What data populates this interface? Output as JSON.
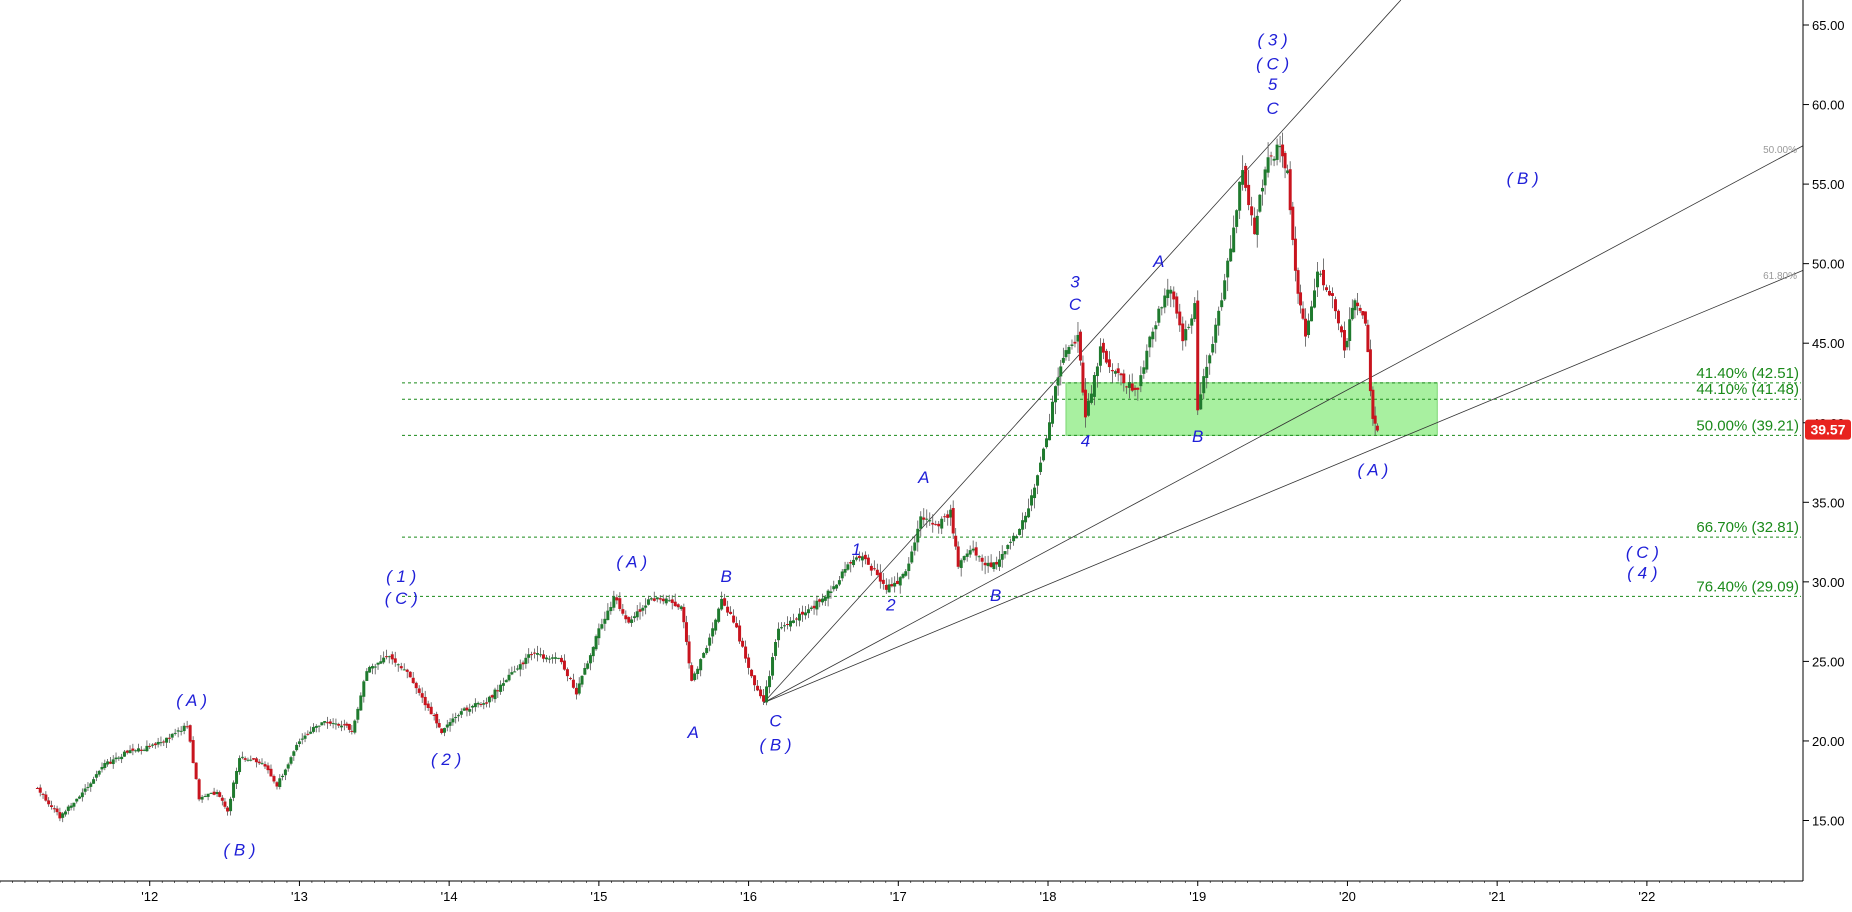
{
  "chart_data": {
    "type": "candlestick",
    "x_axis": {
      "ticks": [
        "'12",
        "'13",
        "'14",
        "'15",
        "'16",
        "'17",
        "'18",
        "'19",
        "'20",
        "'21",
        "'22"
      ]
    },
    "y_axis": {
      "range": [
        10.5,
        66.5
      ],
      "ticks": [
        "15.00",
        "20.00",
        "25.00",
        "30.00",
        "35.00",
        "40.00",
        "45.00",
        "50.00",
        "55.00",
        "60.00",
        "65.00"
      ]
    },
    "last_price": {
      "value": 39.57,
      "label": "39.57",
      "color": "#e8231f"
    },
    "colors": {
      "up": "#1f7a2e",
      "down": "#c8141e",
      "wick": "#555555",
      "fib_line": "#1a8a1a",
      "zone_fill": "#a8f0a0",
      "wave_label": "#1f1fd8",
      "fan_line": "#333333"
    },
    "price_path": [
      [
        2011.25,
        17.0
      ],
      [
        2011.4,
        15.2
      ],
      [
        2011.55,
        16.8
      ],
      [
        2011.7,
        18.5
      ],
      [
        2011.85,
        19.3
      ],
      [
        2012.0,
        19.6
      ],
      [
        2012.15,
        20.3
      ],
      [
        2012.25,
        21.0
      ],
      [
        2012.33,
        16.4
      ],
      [
        2012.45,
        16.8
      ],
      [
        2012.52,
        15.6
      ],
      [
        2012.6,
        19.0
      ],
      [
        2012.75,
        18.7
      ],
      [
        2012.85,
        17.2
      ],
      [
        2013.0,
        20.0
      ],
      [
        2013.15,
        21.2
      ],
      [
        2013.3,
        21.0
      ],
      [
        2013.35,
        20.6
      ],
      [
        2013.45,
        24.5
      ],
      [
        2013.6,
        25.4
      ],
      [
        2013.7,
        24.5
      ],
      [
        2013.9,
        21.5
      ],
      [
        2013.95,
        20.6
      ],
      [
        2014.1,
        22.0
      ],
      [
        2014.25,
        22.5
      ],
      [
        2014.4,
        24.0
      ],
      [
        2014.55,
        25.5
      ],
      [
        2014.75,
        25.0
      ],
      [
        2014.85,
        23.0
      ],
      [
        2015.0,
        27.0
      ],
      [
        2015.1,
        29.0
      ],
      [
        2015.2,
        27.5
      ],
      [
        2015.35,
        29.0
      ],
      [
        2015.55,
        28.5
      ],
      [
        2015.62,
        23.8
      ],
      [
        2015.72,
        26.0
      ],
      [
        2015.82,
        29.0
      ],
      [
        2015.92,
        27.0
      ],
      [
        2016.02,
        24.0
      ],
      [
        2016.1,
        22.4
      ],
      [
        2016.2,
        27.0
      ],
      [
        2016.4,
        28.2
      ],
      [
        2016.55,
        29.5
      ],
      [
        2016.72,
        31.7
      ],
      [
        2016.8,
        31.2
      ],
      [
        2016.92,
        29.5
      ],
      [
        2017.05,
        30.5
      ],
      [
        2017.15,
        34.0
      ],
      [
        2017.25,
        33.5
      ],
      [
        2017.35,
        34.3
      ],
      [
        2017.4,
        31.0
      ],
      [
        2017.5,
        32.0
      ],
      [
        2017.62,
        30.8
      ],
      [
        2017.75,
        32.5
      ],
      [
        2017.85,
        34.0
      ],
      [
        2017.95,
        37.5
      ],
      [
        2018.05,
        42.0
      ],
      [
        2018.12,
        44.5
      ],
      [
        2018.2,
        45.5
      ],
      [
        2018.25,
        40.5
      ],
      [
        2018.35,
        44.5
      ],
      [
        2018.45,
        43.0
      ],
      [
        2018.6,
        42.0
      ],
      [
        2018.7,
        46.0
      ],
      [
        2018.82,
        48.5
      ],
      [
        2018.9,
        45.0
      ],
      [
        2018.98,
        47.5
      ],
      [
        2019.0,
        41.0
      ],
      [
        2019.12,
        46.0
      ],
      [
        2019.2,
        50.0
      ],
      [
        2019.3,
        56.0
      ],
      [
        2019.38,
        52.0
      ],
      [
        2019.45,
        56.0
      ],
      [
        2019.55,
        57.5
      ],
      [
        2019.6,
        55.5
      ],
      [
        2019.67,
        48.0
      ],
      [
        2019.72,
        45.5
      ],
      [
        2019.8,
        49.5
      ],
      [
        2019.9,
        48.0
      ],
      [
        2019.98,
        44.5
      ],
      [
        2020.05,
        48.0
      ],
      [
        2020.12,
        46.5
      ],
      [
        2020.17,
        40.0
      ],
      [
        2020.2,
        39.4
      ]
    ],
    "fib_levels": [
      {
        "value": 42.51,
        "label": "41.40% (42.51)"
      },
      {
        "value": 41.48,
        "label": "44.10% (41.48)"
      },
      {
        "value": 39.21,
        "label": "50.00% (39.21)"
      },
      {
        "value": 32.81,
        "label": "66.70% (32.81)"
      },
      {
        "value": 29.09,
        "label": "76.40% (29.09)"
      }
    ],
    "support_zone": {
      "x_start": 2018.12,
      "x_end": 2020.6,
      "y_low": 39.21,
      "y_high": 42.51
    },
    "fan_lines": {
      "origin": [
        2016.1,
        22.4
      ],
      "rays": [
        {
          "through": [
            2019.55,
            58.2
          ],
          "label": ""
        },
        {
          "through": [
            2023.1,
            57.7
          ],
          "label": "50.00%"
        },
        {
          "through": [
            2023.1,
            49.8
          ],
          "label": "61.80%"
        }
      ]
    },
    "wave_labels": [
      {
        "text": "( A )",
        "x": 2012.28,
        "y": 22.2
      },
      {
        "text": "( B )",
        "x": 2012.6,
        "y": 12.8
      },
      {
        "text": "( 1 )",
        "x": 2013.68,
        "y": 30.0
      },
      {
        "text": "( C )",
        "x": 2013.68,
        "y": 28.6
      },
      {
        "text": "( 2 )",
        "x": 2013.98,
        "y": 18.5
      },
      {
        "text": "( A )",
        "x": 2015.22,
        "y": 30.9
      },
      {
        "text": "A",
        "x": 2015.63,
        "y": 20.2
      },
      {
        "text": "B",
        "x": 2015.85,
        "y": 30.0
      },
      {
        "text": "C",
        "x": 2016.18,
        "y": 20.9
      },
      {
        "text": "( B )",
        "x": 2016.18,
        "y": 19.4
      },
      {
        "text": "1",
        "x": 2016.72,
        "y": 31.7
      },
      {
        "text": "2",
        "x": 2016.95,
        "y": 28.2
      },
      {
        "text": "A",
        "x": 2017.17,
        "y": 36.2
      },
      {
        "text": "B",
        "x": 2017.65,
        "y": 28.8
      },
      {
        "text": "3",
        "x": 2018.18,
        "y": 48.5
      },
      {
        "text": "C",
        "x": 2018.18,
        "y": 47.1
      },
      {
        "text": "4",
        "x": 2018.25,
        "y": 38.5
      },
      {
        "text": "A",
        "x": 2018.74,
        "y": 49.8
      },
      {
        "text": "B",
        "x": 2019.0,
        "y": 38.8
      },
      {
        "text": "( 3 )",
        "x": 2019.5,
        "y": 63.7
      },
      {
        "text": "( C )",
        "x": 2019.5,
        "y": 62.2
      },
      {
        "text": "5",
        "x": 2019.5,
        "y": 60.9
      },
      {
        "text": "C",
        "x": 2019.5,
        "y": 59.4
      },
      {
        "text": "( A )",
        "x": 2020.17,
        "y": 36.7
      },
      {
        "text": "( B )",
        "x": 2021.17,
        "y": 55.0
      },
      {
        "text": "( C )",
        "x": 2021.97,
        "y": 31.5
      },
      {
        "text": "( 4 )",
        "x": 2021.97,
        "y": 30.2
      }
    ]
  }
}
